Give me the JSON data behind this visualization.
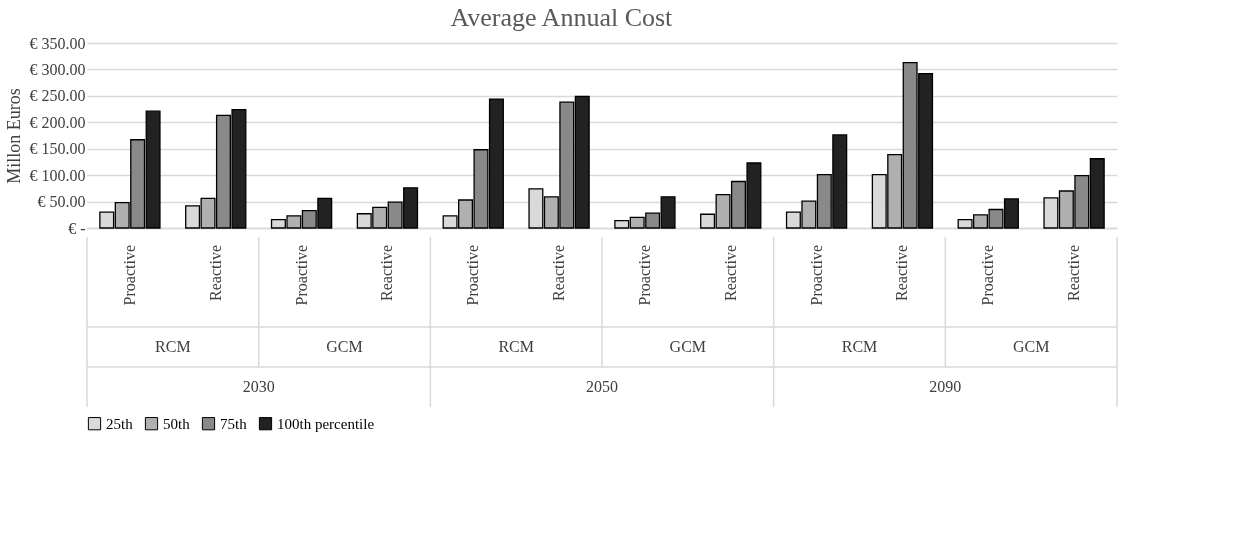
{
  "chart_data": {
    "type": "bar",
    "title": "Average Annual Cost",
    "ylabel": "Millon Euros",
    "categories": [
      "Proactive",
      "Reactive",
      "Proactive",
      "Reactive",
      "Proactive",
      "Reactive",
      "Proactive",
      "Reactive",
      "Proactive",
      "Reactive",
      "Proactive",
      "Reactive"
    ],
    "annotations": [
      "RCM",
      "GCM",
      "RCM",
      "GCM",
      "RCM",
      "GCM",
      "2030",
      "2050",
      "2090"
    ],
    "series": [
      {
        "name": "25th",
        "color": "#d9d9d9",
        "values": [
          30,
          42,
          16,
          27,
          23,
          74,
          14,
          26,
          30,
          101,
          16,
          57
        ]
      },
      {
        "name": "50th",
        "color": "#b0b0b0",
        "values": [
          48,
          56,
          23,
          39,
          53,
          59,
          20,
          63,
          51,
          139,
          25,
          70
        ]
      },
      {
        "name": "75th",
        "color": "#898989",
        "values": [
          167,
          213,
          33,
          49,
          148,
          238,
          28,
          88,
          101,
          313,
          35,
          99
        ]
      },
      {
        "name": "100th percentile",
        "color": "#222222",
        "values": [
          221,
          224,
          56,
          76,
          244,
          249,
          59,
          123,
          176,
          292,
          55,
          131
        ]
      }
    ],
    "ylim": [
      0,
      350
    ],
    "yticks": [
      {
        "value": 0,
        "label": "€ -"
      },
      {
        "value": 50,
        "label": "€ 50.00"
      },
      {
        "value": 100,
        "label": "€ 100.00"
      },
      {
        "value": 150,
        "label": "€ 150.00"
      },
      {
        "value": 200,
        "label": "€ 200.00"
      },
      {
        "value": 250,
        "label": "€ 250.00"
      },
      {
        "value": 300,
        "label": "€ 300.00"
      },
      {
        "value": 350,
        "label": "€ 350.00"
      }
    ],
    "grid": "y",
    "legend": "bottom"
  }
}
